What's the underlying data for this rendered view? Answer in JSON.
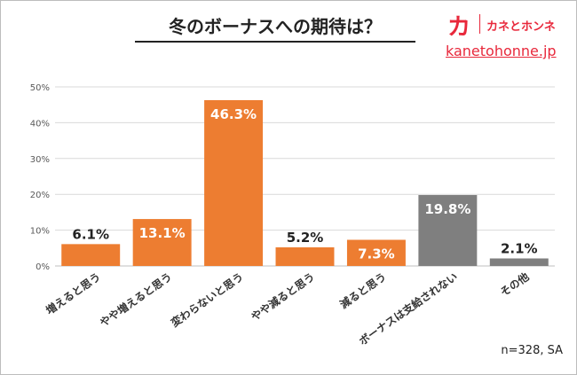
{
  "header": {
    "title": "冬のボーナスへの期待は？",
    "brand_mark": "カ",
    "brand_name": "カネとホンネ",
    "brand_url": "kanetohonne.jp"
  },
  "footnote": "n=328, SA",
  "colors": {
    "orange": "#ed7d31",
    "gray": "#7f7f7f",
    "brand": "#e8283b"
  },
  "chart_data": {
    "type": "bar",
    "title": "冬のボーナスへの期待は？",
    "categories": [
      "増えると思う",
      "やや増えると思う",
      "変わらないと思う",
      "やや減ると思う",
      "減ると思う",
      "ボーナスは支給されない",
      "その他"
    ],
    "values": [
      6.1,
      13.1,
      46.3,
      5.2,
      7.3,
      19.8,
      2.1
    ],
    "data_labels": [
      "6.1%",
      "13.1%",
      "46.3%",
      "5.2%",
      "7.3%",
      "19.8%",
      "2.1%"
    ],
    "bar_colors": [
      "#ed7d31",
      "#ed7d31",
      "#ed7d31",
      "#ed7d31",
      "#ed7d31",
      "#7f7f7f",
      "#7f7f7f"
    ],
    "label_colors": [
      "#ffffff",
      "#ffffff",
      "#ffffff",
      "#ffffff",
      "#ffffff",
      "#ffffff",
      "#222222"
    ],
    "y_ticks": [
      0,
      10,
      20,
      30,
      40,
      50
    ],
    "y_tick_labels": [
      "0%",
      "10%",
      "20%",
      "30%",
      "40%",
      "50%"
    ],
    "ylim": [
      0,
      50
    ],
    "grid": true,
    "legend": "none"
  }
}
